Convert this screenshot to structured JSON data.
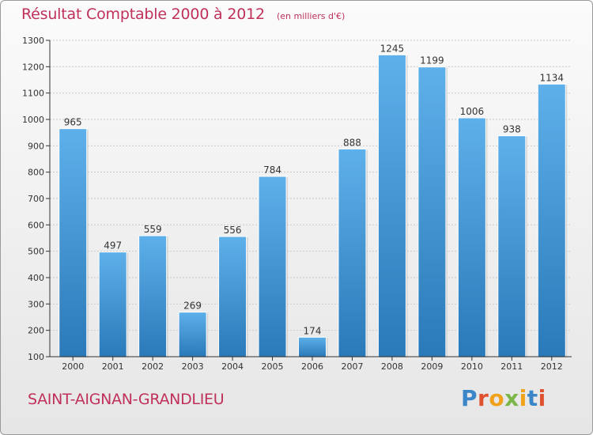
{
  "header": {
    "title": "Résultat Comptable 2000 à 2012",
    "subtitle": "(en milliers d'€)"
  },
  "footer": {
    "commune": "SAINT-AIGNAN-GRANDLIEU",
    "brand": "Proxiti"
  },
  "colors": {
    "title": "#c0315a",
    "bar_top": "#5eb0ea",
    "bar_bottom": "#2a79b9",
    "axis": "#333333"
  },
  "chart_data": {
    "type": "bar",
    "title": "Résultat Comptable 2000 à 2012",
    "subtitle": "(en milliers d'€)",
    "categories": [
      "2000",
      "2001",
      "2002",
      "2003",
      "2004",
      "2005",
      "2006",
      "2007",
      "2008",
      "2009",
      "2010",
      "2011",
      "2012"
    ],
    "values": [
      965,
      497,
      559,
      269,
      556,
      784,
      174,
      888,
      1245,
      1199,
      1006,
      938,
      1134
    ],
    "ylim": [
      100,
      1300
    ],
    "yticks": [
      100,
      200,
      300,
      400,
      500,
      600,
      700,
      800,
      900,
      1000,
      1100,
      1200,
      1300
    ],
    "grid": true,
    "legend": "none"
  }
}
